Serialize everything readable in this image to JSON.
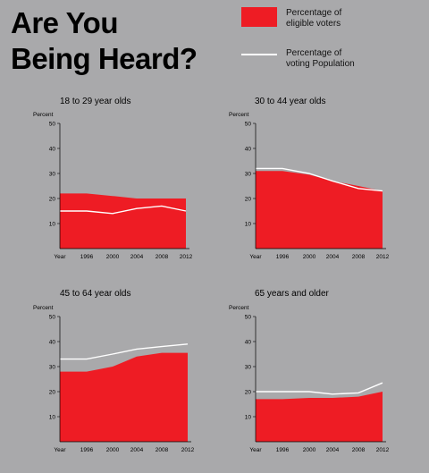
{
  "title_line1": "Are You",
  "title_line2": "Being Heard?",
  "legend": {
    "area_label_line1": "Percentage of",
    "area_label_line2": "eligible voters",
    "line_label_line1": "Percentage of",
    "line_label_line2": "voting Population"
  },
  "colors": {
    "area": "#ee1c24",
    "line": "#ffffff",
    "background": "#a9a9ab"
  },
  "chart_data": [
    {
      "type": "area",
      "title": "18 to 29 year olds",
      "ylabel": "Percent",
      "x": [
        "Year",
        "1996",
        "2000",
        "2004",
        "2008",
        "2012"
      ],
      "ylim": [
        0,
        50
      ],
      "yticks": [
        10,
        20,
        30,
        40,
        50
      ],
      "series": [
        {
          "name": "Percentage of eligible voters",
          "type": "area",
          "values": [
            22,
            22,
            21,
            20,
            20,
            20
          ]
        },
        {
          "name": "Percentage of voting Population",
          "type": "line",
          "values": [
            15,
            15,
            14,
            16,
            17,
            15
          ]
        }
      ]
    },
    {
      "type": "area",
      "title": "30 to 44 year olds",
      "ylabel": "Percent",
      "x": [
        "Year",
        "1996",
        "2000",
        "2004",
        "2008",
        "2012"
      ],
      "ylim": [
        0,
        50
      ],
      "yticks": [
        10,
        20,
        30,
        40,
        50
      ],
      "series": [
        {
          "name": "Percentage of eligible voters",
          "type": "area",
          "values": [
            31,
            31,
            29.5,
            27,
            25,
            23
          ]
        },
        {
          "name": "Percentage of voting Population",
          "type": "line",
          "values": [
            32,
            32,
            30,
            27,
            24,
            23
          ]
        }
      ]
    },
    {
      "type": "area",
      "title": "45 to 64 year olds",
      "ylabel": "Percent",
      "x": [
        "Year",
        "1996",
        "2000",
        "2004",
        "2008",
        "2012"
      ],
      "ylim": [
        0,
        50
      ],
      "yticks": [
        10,
        20,
        30,
        40,
        50
      ],
      "series": [
        {
          "name": "Percentage of eligible voters",
          "type": "area",
          "values": [
            28,
            28,
            30,
            34,
            35.5,
            35.5
          ]
        },
        {
          "name": "Percentage of voting Population",
          "type": "line",
          "values": [
            33,
            33,
            35,
            37,
            38,
            39
          ]
        }
      ]
    },
    {
      "type": "area",
      "title": "65 years and older",
      "ylabel": "Percent",
      "x": [
        "Year",
        "1996",
        "2000",
        "2004",
        "2008",
        "2012"
      ],
      "ylim": [
        0,
        50
      ],
      "yticks": [
        10,
        20,
        30,
        40,
        50
      ],
      "series": [
        {
          "name": "Percentage of eligible voters",
          "type": "area",
          "values": [
            17,
            17,
            17.5,
            17.5,
            18,
            20
          ]
        },
        {
          "name": "Percentage of voting Population",
          "type": "line",
          "values": [
            20,
            20,
            20,
            19,
            19.5,
            23.5
          ]
        }
      ]
    }
  ]
}
